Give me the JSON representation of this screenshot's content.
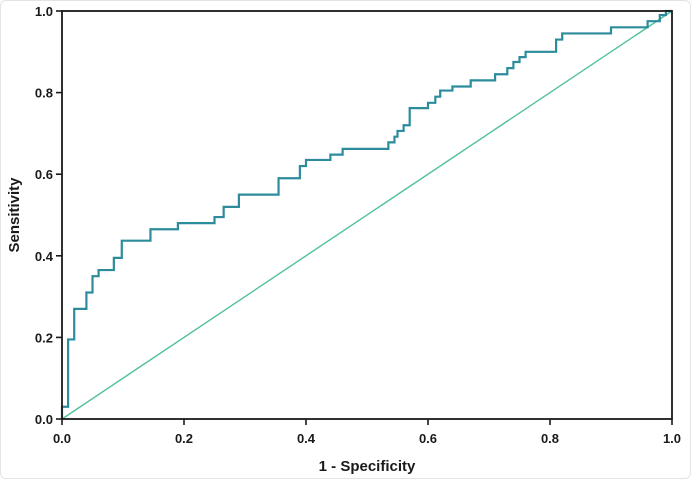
{
  "chart_data": {
    "type": "line",
    "title": "",
    "xlabel": "1 - Specificity",
    "ylabel": "Sensitivity",
    "xlim": [
      0,
      1
    ],
    "ylim": [
      0,
      1
    ],
    "grid": false,
    "xticks": [
      "0.0",
      "0.2",
      "0.4",
      "0.6",
      "0.8",
      "1.0"
    ],
    "yticks": [
      "0.0",
      "0.2",
      "0.4",
      "0.6",
      "0.8",
      "1.0"
    ],
    "series": [
      {
        "color": "#2c8c9c",
        "style": "step",
        "points": [
          [
            0.0,
            0.0
          ],
          [
            0.0,
            0.03
          ],
          [
            0.01,
            0.03
          ],
          [
            0.01,
            0.195
          ],
          [
            0.02,
            0.195
          ],
          [
            0.02,
            0.27
          ],
          [
            0.04,
            0.27
          ],
          [
            0.04,
            0.31
          ],
          [
            0.05,
            0.31
          ],
          [
            0.05,
            0.35
          ],
          [
            0.06,
            0.35
          ],
          [
            0.06,
            0.365
          ],
          [
            0.085,
            0.365
          ],
          [
            0.085,
            0.395
          ],
          [
            0.098,
            0.395
          ],
          [
            0.098,
            0.437
          ],
          [
            0.145,
            0.437
          ],
          [
            0.145,
            0.465
          ],
          [
            0.19,
            0.465
          ],
          [
            0.19,
            0.48
          ],
          [
            0.25,
            0.48
          ],
          [
            0.25,
            0.495
          ],
          [
            0.265,
            0.495
          ],
          [
            0.265,
            0.52
          ],
          [
            0.29,
            0.52
          ],
          [
            0.29,
            0.55
          ],
          [
            0.355,
            0.55
          ],
          [
            0.355,
            0.59
          ],
          [
            0.39,
            0.59
          ],
          [
            0.39,
            0.62
          ],
          [
            0.4,
            0.62
          ],
          [
            0.4,
            0.635
          ],
          [
            0.44,
            0.635
          ],
          [
            0.44,
            0.648
          ],
          [
            0.46,
            0.648
          ],
          [
            0.46,
            0.662
          ],
          [
            0.535,
            0.662
          ],
          [
            0.535,
            0.678
          ],
          [
            0.545,
            0.678
          ],
          [
            0.545,
            0.692
          ],
          [
            0.55,
            0.692
          ],
          [
            0.55,
            0.706
          ],
          [
            0.56,
            0.706
          ],
          [
            0.56,
            0.72
          ],
          [
            0.57,
            0.72
          ],
          [
            0.57,
            0.762
          ],
          [
            0.6,
            0.762
          ],
          [
            0.6,
            0.775
          ],
          [
            0.612,
            0.775
          ],
          [
            0.612,
            0.79
          ],
          [
            0.62,
            0.79
          ],
          [
            0.62,
            0.805
          ],
          [
            0.64,
            0.805
          ],
          [
            0.64,
            0.815
          ],
          [
            0.67,
            0.815
          ],
          [
            0.67,
            0.83
          ],
          [
            0.71,
            0.83
          ],
          [
            0.71,
            0.845
          ],
          [
            0.73,
            0.845
          ],
          [
            0.73,
            0.86
          ],
          [
            0.74,
            0.86
          ],
          [
            0.74,
            0.875
          ],
          [
            0.75,
            0.875
          ],
          [
            0.75,
            0.887
          ],
          [
            0.76,
            0.887
          ],
          [
            0.76,
            0.9
          ],
          [
            0.81,
            0.9
          ],
          [
            0.81,
            0.93
          ],
          [
            0.82,
            0.93
          ],
          [
            0.82,
            0.945
          ],
          [
            0.9,
            0.945
          ],
          [
            0.9,
            0.96
          ],
          [
            0.96,
            0.96
          ],
          [
            0.96,
            0.975
          ],
          [
            0.98,
            0.975
          ],
          [
            0.98,
            0.99
          ],
          [
            0.99,
            0.99
          ],
          [
            0.99,
            1.0
          ],
          [
            1.0,
            1.0
          ]
        ]
      },
      {
        "color": "#4fc19a",
        "style": "line",
        "points": [
          [
            0,
            0
          ],
          [
            1,
            1
          ]
        ]
      }
    ]
  }
}
